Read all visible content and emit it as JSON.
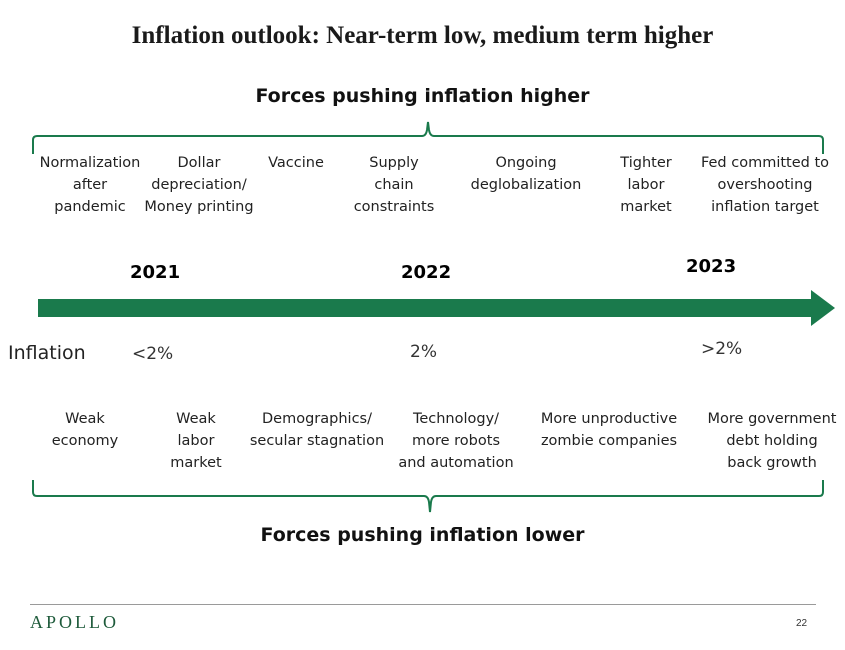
{
  "title": "Inflation outlook: Near-term low, medium term higher",
  "higher": {
    "heading": "Forces pushing inflation higher",
    "items": [
      "Normalization\nafter\npandemic",
      "Dollar\ndepreciation/\nMoney printing",
      "Vaccine",
      "Supply\nchain\nconstraints",
      "Ongoing\ndeglobalization",
      "Tighter\nlabor\nmarket",
      "Fed committed to\novershooting\ninflation target"
    ]
  },
  "timeline": {
    "years": [
      "2021",
      "2022",
      "2023"
    ],
    "inflation_label": "Inflation",
    "values": [
      "<2%",
      "2%",
      ">2%"
    ]
  },
  "lower": {
    "heading": "Forces pushing inflation lower",
    "items": [
      "Weak\neconomy",
      "Weak\nlabor\nmarket",
      "Demographics/\nsecular stagnation",
      "Technology/\nmore robots\nand automation",
      "More unproductive\nzombie companies",
      "More government\ndebt holding\nback growth"
    ]
  },
  "footer": {
    "brand": "APOLLO",
    "page": "22"
  },
  "colors": {
    "accent": "#1a7a4c",
    "brand": "#1d5a3a"
  }
}
